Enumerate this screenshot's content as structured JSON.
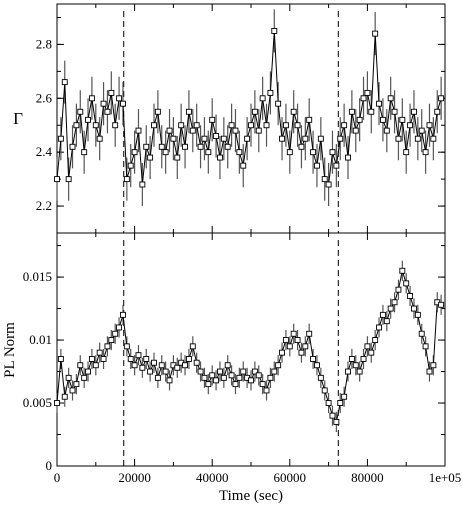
{
  "chart_data": [
    {
      "type": "scatter",
      "panel": "top",
      "xlabel": "",
      "ylabel": "Γ",
      "xlim": [
        0,
        100000
      ],
      "ylim": [
        2.1,
        2.95
      ],
      "yticks": [
        2.2,
        2.4,
        2.6,
        2.8
      ],
      "ytick_labels": [
        "2.2",
        "2.4",
        "2.6",
        "2.8"
      ],
      "marker": "open-square",
      "error_bars": true,
      "grid": false,
      "vlines": [
        17200,
        72500
      ],
      "series": [
        {
          "x": [
            0,
            1000,
            2000,
            3000,
            4000,
            5000,
            6000,
            7000,
            8000,
            9000,
            10000,
            11000,
            12000,
            13000,
            14000,
            15000,
            16000,
            17000,
            18000,
            19000,
            20000,
            21000,
            22000,
            23000,
            24000,
            25000,
            26000,
            27000,
            28000,
            29000,
            30000,
            31000,
            32000,
            33000,
            34000,
            35000,
            36000,
            37000,
            38000,
            39000,
            40000,
            41000,
            42000,
            43000,
            44000,
            45000,
            46000,
            47000,
            48000,
            49000,
            50000,
            51000,
            52000,
            53000,
            54000,
            55000,
            56000,
            57000,
            58000,
            59000,
            60000,
            61000,
            62000,
            63000,
            64000,
            65000,
            66000,
            67000,
            68000,
            69000,
            70000,
            71000,
            72000,
            73000,
            74000,
            75000,
            76000,
            77000,
            78000,
            79000,
            80000,
            81000,
            82000,
            83000,
            84000,
            85000,
            86000,
            87000,
            88000,
            89000,
            90000,
            91000,
            92000,
            93000,
            94000,
            95000,
            96000,
            97000,
            98000,
            99000
          ],
          "y": [
            2.3,
            2.45,
            2.66,
            2.3,
            2.42,
            2.5,
            2.55,
            2.4,
            2.52,
            2.6,
            2.5,
            2.45,
            2.58,
            2.55,
            2.62,
            2.5,
            2.6,
            2.58,
            2.3,
            2.35,
            2.4,
            2.48,
            2.28,
            2.42,
            2.38,
            2.5,
            2.55,
            2.42,
            2.4,
            2.48,
            2.45,
            2.38,
            2.5,
            2.42,
            2.55,
            2.48,
            2.5,
            2.42,
            2.45,
            2.4,
            2.52,
            2.46,
            2.38,
            2.45,
            2.42,
            2.5,
            2.48,
            2.4,
            2.35,
            2.45,
            2.5,
            2.55,
            2.48,
            2.6,
            2.5,
            2.62,
            2.85,
            2.58,
            2.45,
            2.5,
            2.4,
            2.55,
            2.5,
            2.42,
            2.45,
            2.52,
            2.4,
            2.35,
            2.45,
            2.3,
            2.28,
            2.4,
            2.35,
            2.45,
            2.5,
            2.38,
            2.55,
            2.48,
            2.52,
            2.6,
            2.62,
            2.55,
            2.84,
            2.58,
            2.52,
            2.48,
            2.6,
            2.55,
            2.45,
            2.52,
            2.4,
            2.5,
            2.55,
            2.45,
            2.48,
            2.4,
            2.5,
            2.45,
            2.55,
            2.6
          ],
          "err": [
            0.08,
            0.08,
            0.08,
            0.08,
            0.08,
            0.08,
            0.08,
            0.08,
            0.08,
            0.08,
            0.08,
            0.08,
            0.08,
            0.08,
            0.08,
            0.08,
            0.08,
            0.08,
            0.08,
            0.08,
            0.08,
            0.08,
            0.08,
            0.08,
            0.08,
            0.08,
            0.08,
            0.08,
            0.08,
            0.08,
            0.08,
            0.08,
            0.08,
            0.08,
            0.08,
            0.08,
            0.08,
            0.08,
            0.08,
            0.08,
            0.08,
            0.08,
            0.08,
            0.08,
            0.08,
            0.08,
            0.08,
            0.08,
            0.08,
            0.08,
            0.08,
            0.08,
            0.08,
            0.08,
            0.08,
            0.08,
            0.08,
            0.08,
            0.08,
            0.08,
            0.08,
            0.08,
            0.08,
            0.08,
            0.08,
            0.08,
            0.08,
            0.08,
            0.08,
            0.08,
            0.08,
            0.08,
            0.08,
            0.08,
            0.08,
            0.08,
            0.08,
            0.08,
            0.08,
            0.08,
            0.08,
            0.08,
            0.08,
            0.08,
            0.08,
            0.08,
            0.08,
            0.08,
            0.08,
            0.08,
            0.08,
            0.08,
            0.08,
            0.08,
            0.08,
            0.08,
            0.08,
            0.08,
            0.08,
            0.08
          ]
        }
      ]
    },
    {
      "type": "scatter",
      "panel": "bottom",
      "xlabel": "Time (sec)",
      "ylabel": "PL Norm",
      "xlim": [
        0,
        100000
      ],
      "ylim": [
        0,
        0.0185
      ],
      "xticks": [
        0,
        20000,
        40000,
        60000,
        80000,
        100000
      ],
      "xtick_labels": [
        "0",
        "20000",
        "40000",
        "60000",
        "80000",
        "1e+05"
      ],
      "yticks": [
        0,
        0.005,
        0.01,
        0.015
      ],
      "ytick_labels": [
        "0",
        "0.005",
        "0.01",
        "0.015"
      ],
      "marker": "open-square",
      "error_bars": true,
      "grid": false,
      "vlines": [
        17200,
        72500
      ],
      "series": [
        {
          "x": [
            0,
            1000,
            2000,
            3000,
            4000,
            5000,
            6000,
            7000,
            8000,
            9000,
            10000,
            11000,
            12000,
            13000,
            14000,
            15000,
            16000,
            17000,
            18000,
            19000,
            20000,
            21000,
            22000,
            23000,
            24000,
            25000,
            26000,
            27000,
            28000,
            29000,
            30000,
            31000,
            32000,
            33000,
            34000,
            35000,
            36000,
            37000,
            38000,
            39000,
            40000,
            41000,
            42000,
            43000,
            44000,
            45000,
            46000,
            47000,
            48000,
            49000,
            50000,
            51000,
            52000,
            53000,
            54000,
            55000,
            56000,
            57000,
            58000,
            59000,
            60000,
            61000,
            62000,
            63000,
            64000,
            65000,
            66000,
            67000,
            68000,
            69000,
            70000,
            71000,
            72000,
            73000,
            74000,
            75000,
            76000,
            77000,
            78000,
            79000,
            80000,
            81000,
            82000,
            83000,
            84000,
            85000,
            86000,
            87000,
            88000,
            89000,
            90000,
            91000,
            92000,
            93000,
            94000,
            95000,
            96000,
            97000,
            98000,
            99000
          ],
          "y": [
            0.005,
            0.0085,
            0.0055,
            0.007,
            0.006,
            0.0065,
            0.008,
            0.007,
            0.0075,
            0.0085,
            0.008,
            0.009,
            0.0085,
            0.0095,
            0.01,
            0.0105,
            0.011,
            0.012,
            0.0095,
            0.0085,
            0.008,
            0.0088,
            0.0078,
            0.0085,
            0.0075,
            0.0082,
            0.007,
            0.008,
            0.0075,
            0.0068,
            0.008,
            0.0078,
            0.0082,
            0.008,
            0.0085,
            0.0095,
            0.0082,
            0.0075,
            0.007,
            0.0065,
            0.0072,
            0.0068,
            0.0075,
            0.007,
            0.008,
            0.0072,
            0.0065,
            0.007,
            0.0075,
            0.007,
            0.0068,
            0.0075,
            0.0072,
            0.0065,
            0.006,
            0.007,
            0.0075,
            0.008,
            0.009,
            0.01,
            0.0095,
            0.0105,
            0.01,
            0.009,
            0.0095,
            0.0105,
            0.0085,
            0.008,
            0.007,
            0.006,
            0.005,
            0.004,
            0.0035,
            0.005,
            0.0055,
            0.0075,
            0.0085,
            0.008,
            0.0075,
            0.0085,
            0.0095,
            0.009,
            0.01,
            0.011,
            0.012,
            0.0115,
            0.0125,
            0.013,
            0.014,
            0.0155,
            0.0145,
            0.0135,
            0.0125,
            0.012,
            0.0105,
            0.0095,
            0.0075,
            0.008,
            0.013,
            0.0128
          ],
          "err": [
            0.0008,
            0.0008,
            0.0008,
            0.0008,
            0.0008,
            0.0008,
            0.0008,
            0.0008,
            0.0008,
            0.0008,
            0.0008,
            0.0008,
            0.0008,
            0.0008,
            0.0008,
            0.0008,
            0.0008,
            0.0008,
            0.0008,
            0.0008,
            0.0008,
            0.0008,
            0.0008,
            0.0008,
            0.0008,
            0.0008,
            0.0008,
            0.0008,
            0.0008,
            0.0008,
            0.0008,
            0.0008,
            0.0008,
            0.0008,
            0.0008,
            0.0008,
            0.0008,
            0.0008,
            0.0008,
            0.0008,
            0.0008,
            0.0008,
            0.0008,
            0.0008,
            0.0008,
            0.0008,
            0.0008,
            0.0008,
            0.0008,
            0.0008,
            0.0008,
            0.0008,
            0.0008,
            0.0008,
            0.0008,
            0.0008,
            0.0008,
            0.0008,
            0.0008,
            0.0008,
            0.0008,
            0.0008,
            0.0008,
            0.0008,
            0.0008,
            0.0008,
            0.0008,
            0.0008,
            0.0008,
            0.0008,
            0.0008,
            0.0008,
            0.0008,
            0.0008,
            0.0008,
            0.0008,
            0.0008,
            0.0008,
            0.0008,
            0.0008,
            0.0008,
            0.0008,
            0.0008,
            0.0008,
            0.0008,
            0.0008,
            0.0008,
            0.0008,
            0.0008,
            0.0008,
            0.0008,
            0.0008,
            0.0008,
            0.0008,
            0.0008,
            0.0008,
            0.0008,
            0.0008,
            0.0008,
            0.0008
          ]
        }
      ]
    }
  ]
}
